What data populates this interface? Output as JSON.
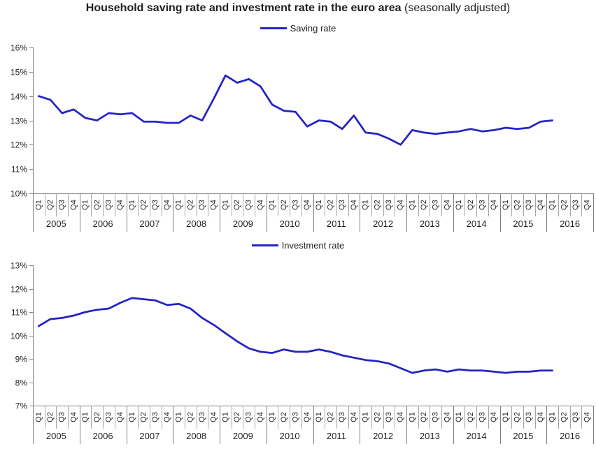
{
  "title": {
    "main": "Household saving rate and investment rate in the euro area",
    "suffix": " (seasonally adjusted)"
  },
  "colors": {
    "line": "#2424c4",
    "axis": "#808080",
    "separator": "#a6a6a6",
    "text": "#1f1f1f"
  },
  "x_axis": {
    "quarter_labels": [
      "Q1",
      "Q2",
      "Q3",
      "Q4"
    ],
    "years": [
      "2005",
      "2006",
      "2007",
      "2008",
      "2009",
      "2010",
      "2011",
      "2012",
      "2013",
      "2014",
      "2015",
      "2016"
    ]
  },
  "chart_data": [
    {
      "type": "line",
      "name": "saving-rate",
      "legend_label": "Saving rate",
      "ylim": [
        10,
        16
      ],
      "yticks": [
        "16%",
        "15%",
        "14%",
        "13%",
        "12%",
        "11%",
        "10%"
      ],
      "x_start": "2005 Q1",
      "x_end": "2016 Q1",
      "values": [
        14.0,
        13.85,
        13.3,
        13.45,
        13.1,
        13.0,
        13.3,
        13.25,
        13.3,
        12.95,
        12.95,
        12.9,
        12.9,
        13.2,
        13.0,
        13.9,
        14.85,
        14.55,
        14.7,
        14.4,
        13.65,
        13.4,
        13.35,
        12.75,
        13.0,
        12.95,
        12.65,
        13.2,
        12.5,
        12.45,
        12.25,
        12.0,
        12.6,
        12.5,
        12.45,
        12.5,
        12.55,
        12.65,
        12.55,
        12.6,
        12.7,
        12.65,
        12.7,
        12.95,
        13.0
      ]
    },
    {
      "type": "line",
      "name": "investment-rate",
      "legend_label": "Investment rate",
      "ylim": [
        7,
        13
      ],
      "yticks": [
        "13%",
        "12%",
        "11%",
        "10%",
        "9%",
        "8%",
        "7%"
      ],
      "x_start": "2005 Q1",
      "x_end": "2016 Q1",
      "values": [
        10.4,
        10.7,
        10.75,
        10.85,
        11.0,
        11.1,
        11.15,
        11.4,
        11.6,
        11.55,
        11.5,
        11.3,
        11.35,
        11.15,
        10.75,
        10.45,
        10.1,
        9.75,
        9.45,
        9.3,
        9.25,
        9.4,
        9.3,
        9.3,
        9.4,
        9.3,
        9.15,
        9.05,
        8.95,
        8.9,
        8.8,
        8.6,
        8.4,
        8.5,
        8.55,
        8.45,
        8.55,
        8.5,
        8.5,
        8.45,
        8.4,
        8.45,
        8.45,
        8.5,
        8.5
      ]
    }
  ]
}
